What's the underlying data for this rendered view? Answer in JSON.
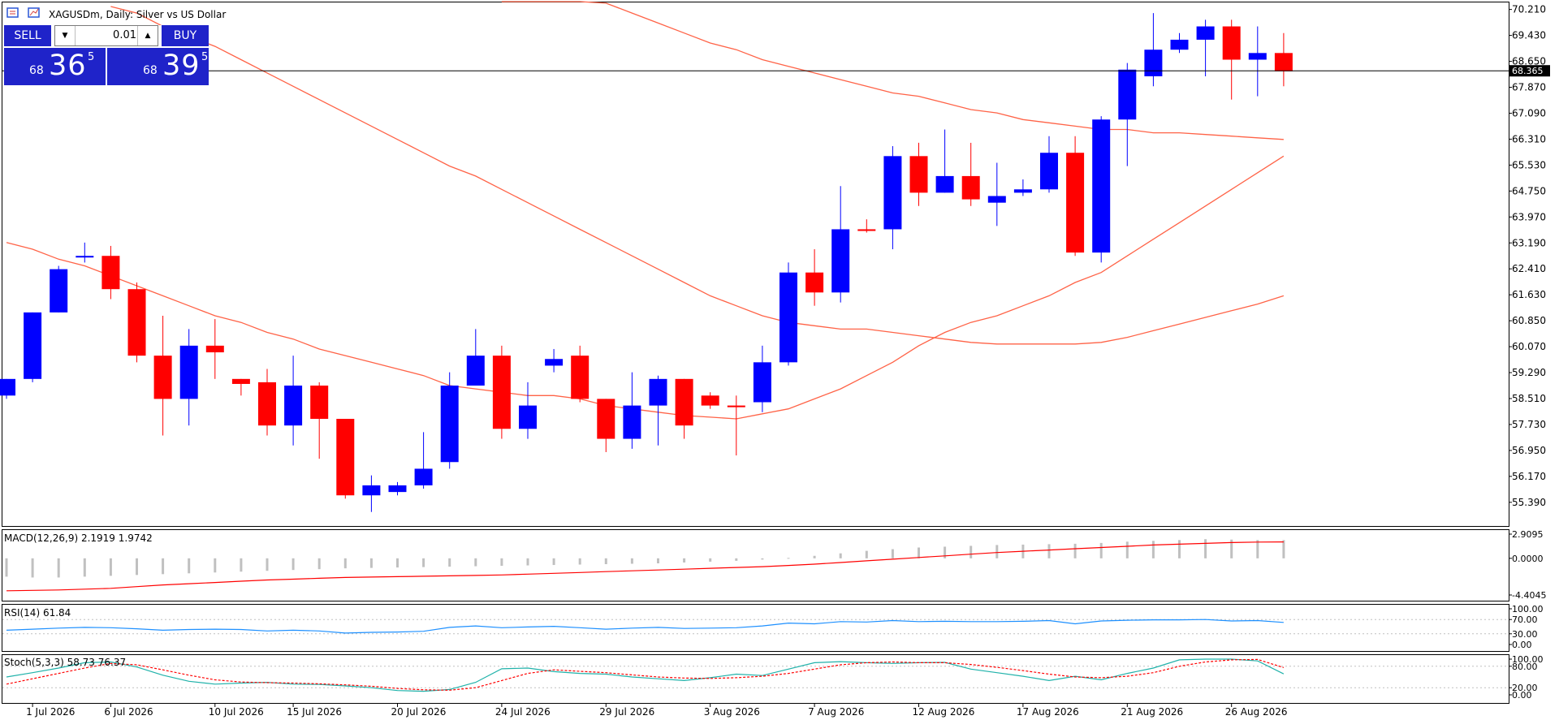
{
  "header": {
    "symbol_title": "XAGUSDm, Daily:  Silver vs US Dollar"
  },
  "trade_panel": {
    "sell_label": "SELL",
    "buy_label": "BUY",
    "lot_value": "0.01",
    "sell_price_prefix": "68",
    "sell_price_big": "36",
    "sell_price_sup": "5",
    "buy_price_prefix": "68",
    "buy_price_big": "39",
    "buy_price_sup": "5"
  },
  "chart_data": {
    "type": "candlestick",
    "symbol": "XAGUSDm",
    "timeframe": "Daily",
    "description": "Silver vs US Dollar",
    "colors": {
      "bull": "#0000ff",
      "bear": "#ff0000",
      "ma": "#ff6347",
      "rsi": "#1e90ff",
      "stoch_main": "#20b2aa",
      "stoch_signal": "#ff0000",
      "macd_hist": "#c0c0c0"
    },
    "price_axis": {
      "ticks": [
        "70.210",
        "69.430",
        "68.650",
        "67.870",
        "67.090",
        "66.310",
        "65.530",
        "64.750",
        "63.970",
        "63.190",
        "62.410",
        "61.630",
        "60.850",
        "60.070",
        "59.290",
        "58.510",
        "57.730",
        "56.950",
        "56.170",
        "55.390"
      ],
      "range": [
        54.8,
        70.25
      ]
    },
    "current_price": "68.365",
    "date_labels": [
      "1 Jul 2026",
      "6 Jul 2026",
      "10 Jul 2026",
      "15 Jul 2026",
      "20 Jul 2026",
      "24 Jul 2026",
      "29 Jul 2026",
      "3 Aug 2026",
      "7 Aug 2026",
      "12 Aug 2026",
      "17 Aug 2026",
      "21 Aug 2026",
      "26 Aug 2026"
    ],
    "candles": [
      {
        "date": "30 Jun",
        "o": 58.6,
        "h": 59.1,
        "l": 58.5,
        "c": 59.1
      },
      {
        "date": "1 Jul",
        "o": 59.1,
        "h": 61.1,
        "l": 59.0,
        "c": 61.1
      },
      {
        "date": "2 Jul",
        "o": 61.1,
        "h": 62.5,
        "l": 61.1,
        "c": 62.4
      },
      {
        "date": "3 Jul",
        "o": 62.8,
        "h": 63.2,
        "l": 62.6,
        "c": 62.8
      },
      {
        "date": "6 Jul",
        "o": 62.8,
        "h": 63.1,
        "l": 61.5,
        "c": 61.8
      },
      {
        "date": "7 Jul",
        "o": 61.8,
        "h": 62.0,
        "l": 59.6,
        "c": 59.8
      },
      {
        "date": "8 Jul",
        "o": 59.8,
        "h": 61.0,
        "l": 57.4,
        "c": 58.5
      },
      {
        "date": "9 Jul",
        "o": 58.5,
        "h": 60.6,
        "l": 57.7,
        "c": 60.1
      },
      {
        "date": "10 Jul",
        "o": 60.1,
        "h": 60.9,
        "l": 59.1,
        "c": 59.9
      },
      {
        "date": "13 Jul",
        "o": 59.1,
        "h": 59.1,
        "l": 58.6,
        "c": 58.95
      },
      {
        "date": "14 Jul",
        "o": 59.0,
        "h": 59.4,
        "l": 57.4,
        "c": 57.7
      },
      {
        "date": "15 Jul",
        "o": 57.7,
        "h": 59.8,
        "l": 57.1,
        "c": 58.9
      },
      {
        "date": "16 Jul",
        "o": 58.9,
        "h": 59.0,
        "l": 56.7,
        "c": 57.9
      },
      {
        "date": "17 Jul",
        "o": 57.9,
        "h": 57.9,
        "l": 55.5,
        "c": 55.6
      },
      {
        "date": "20 Jul",
        "o": 55.6,
        "h": 56.2,
        "l": 55.1,
        "c": 55.9
      },
      {
        "date": "21 Jul",
        "o": 55.7,
        "h": 56.0,
        "l": 55.6,
        "c": 55.9
      },
      {
        "date": "22 Jul",
        "o": 55.9,
        "h": 57.5,
        "l": 55.8,
        "c": 56.4
      },
      {
        "date": "23 Jul",
        "o": 56.6,
        "h": 59.3,
        "l": 56.4,
        "c": 58.9
      },
      {
        "date": "24 Jul",
        "o": 58.9,
        "h": 60.6,
        "l": 58.9,
        "c": 59.8
      },
      {
        "date": "27 Jul",
        "o": 59.8,
        "h": 60.1,
        "l": 57.3,
        "c": 57.6
      },
      {
        "date": "28 Jul",
        "o": 57.6,
        "h": 59.0,
        "l": 57.3,
        "c": 58.3
      },
      {
        "date": "29 Jul",
        "o": 59.5,
        "h": 60.0,
        "l": 59.3,
        "c": 59.7
      },
      {
        "date": "30 Jul",
        "o": 59.8,
        "h": 60.1,
        "l": 58.4,
        "c": 58.5
      },
      {
        "date": "31 Jul",
        "o": 58.5,
        "h": 58.5,
        "l": 56.9,
        "c": 57.3
      },
      {
        "date": "3 Aug",
        "o": 57.3,
        "h": 59.3,
        "l": 57.0,
        "c": 58.3
      },
      {
        "date": "4 Aug",
        "o": 58.3,
        "h": 59.2,
        "l": 57.1,
        "c": 59.1
      },
      {
        "date": "5 Aug",
        "o": 59.1,
        "h": 59.1,
        "l": 57.3,
        "c": 57.7
      },
      {
        "date": "6 Aug",
        "o": 58.6,
        "h": 58.7,
        "l": 58.2,
        "c": 58.3
      },
      {
        "date": "7 Aug",
        "o": 58.3,
        "h": 58.6,
        "l": 56.8,
        "c": 58.25
      },
      {
        "date": "10 Aug",
        "o": 58.4,
        "h": 60.1,
        "l": 58.1,
        "c": 59.6
      },
      {
        "date": "11 Aug",
        "o": 59.6,
        "h": 62.6,
        "l": 59.5,
        "c": 62.3
      },
      {
        "date": "12 Aug",
        "o": 62.3,
        "h": 63.0,
        "l": 61.3,
        "c": 61.7
      },
      {
        "date": "13 Aug",
        "o": 61.7,
        "h": 64.9,
        "l": 61.4,
        "c": 63.6
      },
      {
        "date": "14 Aug",
        "o": 63.6,
        "h": 63.9,
        "l": 63.5,
        "c": 63.55
      },
      {
        "date": "17 Aug",
        "o": 63.6,
        "h": 66.1,
        "l": 63.0,
        "c": 65.8
      },
      {
        "date": "18 Aug",
        "o": 65.8,
        "h": 66.2,
        "l": 64.3,
        "c": 64.7
      },
      {
        "date": "19 Aug",
        "o": 64.7,
        "h": 66.6,
        "l": 64.7,
        "c": 65.2
      },
      {
        "date": "20 Aug",
        "o": 65.2,
        "h": 66.2,
        "l": 64.3,
        "c": 64.5
      },
      {
        "date": "21 Aug",
        "o": 64.4,
        "h": 65.6,
        "l": 63.7,
        "c": 64.6
      },
      {
        "date": "24 Aug",
        "o": 64.7,
        "h": 65.1,
        "l": 64.6,
        "c": 64.8
      },
      {
        "date": "25 Aug",
        "o": 64.8,
        "h": 66.4,
        "l": 64.7,
        "c": 65.9
      },
      {
        "date": "26 Aug",
        "o": 65.9,
        "h": 66.4,
        "l": 62.8,
        "c": 62.9
      },
      {
        "date": "27 Aug",
        "o": 62.9,
        "h": 67.0,
        "l": 62.6,
        "c": 66.9
      },
      {
        "date": "28 Aug",
        "o": 66.9,
        "h": 68.6,
        "l": 65.5,
        "c": 68.4
      },
      {
        "date": "31 Aug",
        "o": 68.2,
        "h": 70.1,
        "l": 67.9,
        "c": 69.0
      },
      {
        "date": "1 Sep",
        "o": 69.0,
        "h": 69.5,
        "l": 68.9,
        "c": 69.3
      },
      {
        "date": "2 Sep",
        "o": 69.3,
        "h": 69.9,
        "l": 68.2,
        "c": 69.7
      },
      {
        "date": "3 Sep",
        "o": 69.7,
        "h": 69.9,
        "l": 67.5,
        "c": 68.7
      },
      {
        "date": "4 Sep",
        "o": 68.7,
        "h": 69.7,
        "l": 67.6,
        "c": 68.9
      },
      {
        "date": "7 Sep",
        "o": 68.9,
        "h": 69.5,
        "l": 67.9,
        "c": 68.35
      }
    ],
    "moving_averages": [
      {
        "name": "MA fast",
        "values": [
          63.2,
          63.0,
          62.7,
          62.5,
          62.2,
          61.9,
          61.6,
          61.3,
          61.0,
          60.8,
          60.5,
          60.3,
          60.0,
          59.8,
          59.6,
          59.4,
          59.2,
          58.9,
          58.8,
          58.7,
          58.6,
          58.6,
          58.5,
          58.3,
          58.2,
          58.1,
          58.0,
          57.95,
          57.9,
          58.05,
          58.2,
          58.5,
          58.8,
          59.2,
          59.6,
          60.1,
          60.5,
          60.8,
          61.0,
          61.3,
          61.6,
          62.0,
          62.3,
          62.8,
          63.3,
          63.8,
          64.3,
          64.8,
          65.3,
          65.8
        ]
      },
      {
        "name": "MA slow",
        "values": [
          null,
          null,
          null,
          null,
          70.3,
          70.1,
          69.7,
          69.4,
          69.1,
          68.7,
          68.3,
          67.9,
          67.5,
          67.1,
          66.7,
          66.3,
          65.9,
          65.5,
          65.2,
          64.8,
          64.4,
          64.0,
          63.6,
          63.2,
          62.8,
          62.4,
          62.0,
          61.6,
          61.3,
          61.0,
          60.8,
          60.7,
          60.6,
          60.6,
          60.5,
          60.4,
          60.3,
          60.2,
          60.15,
          60.15,
          60.15,
          60.15,
          60.2,
          60.35,
          60.55,
          60.75,
          60.95,
          61.15,
          61.35,
          61.6
        ]
      },
      {
        "name": "MA long",
        "values": [
          null,
          null,
          null,
          null,
          null,
          null,
          null,
          null,
          null,
          null,
          null,
          null,
          null,
          null,
          null,
          null,
          null,
          null,
          null,
          72.0,
          71.5,
          71.1,
          70.8,
          70.4,
          70.1,
          69.8,
          69.5,
          69.2,
          69.0,
          68.7,
          68.5,
          68.3,
          68.1,
          67.9,
          67.7,
          67.6,
          67.4,
          67.2,
          67.1,
          66.9,
          66.8,
          66.7,
          66.6,
          66.6,
          66.5,
          66.5,
          66.45,
          66.4,
          66.35,
          66.3
        ]
      }
    ],
    "indicators": {
      "macd": {
        "label": "MACD(12,26,9) 2.1919 1.9742",
        "axis_ticks": [
          "2.9095",
          "0.0000",
          "-4.4045"
        ],
        "range": [
          -4.4045,
          2.9095
        ],
        "hist": [
          -2.2,
          -2.3,
          -2.3,
          -2.2,
          -2.1,
          -2.0,
          -1.9,
          -1.8,
          -1.7,
          -1.6,
          -1.5,
          -1.4,
          -1.3,
          -1.2,
          -1.15,
          -1.1,
          -1.05,
          -1.0,
          -0.95,
          -0.9,
          -0.85,
          -0.8,
          -0.75,
          -0.7,
          -0.65,
          -0.6,
          -0.5,
          -0.4,
          -0.3,
          -0.15,
          0.05,
          0.3,
          0.6,
          0.9,
          1.1,
          1.3,
          1.4,
          1.5,
          1.6,
          1.65,
          1.7,
          1.75,
          1.85,
          2.0,
          2.1,
          2.2,
          2.3,
          2.25,
          2.2,
          2.19
        ],
        "signal": [
          -3.9,
          -3.85,
          -3.8,
          -3.7,
          -3.6,
          -3.4,
          -3.2,
          -3.05,
          -2.9,
          -2.75,
          -2.6,
          -2.5,
          -2.4,
          -2.3,
          -2.25,
          -2.2,
          -2.15,
          -2.1,
          -2.05,
          -2.0,
          -1.9,
          -1.8,
          -1.7,
          -1.6,
          -1.5,
          -1.4,
          -1.3,
          -1.2,
          -1.1,
          -1.0,
          -0.85,
          -0.7,
          -0.5,
          -0.3,
          -0.1,
          0.1,
          0.3,
          0.5,
          0.7,
          0.85,
          1.0,
          1.15,
          1.3,
          1.45,
          1.6,
          1.7,
          1.8,
          1.9,
          1.95,
          1.97
        ]
      },
      "rsi": {
        "label": "RSI(14) 61.84",
        "axis_ticks": [
          "100.00",
          "70.00",
          "30.00",
          "0.00"
        ],
        "range": [
          0,
          100
        ],
        "values": [
          40,
          43,
          46,
          48,
          47,
          44,
          40,
          42,
          43,
          42,
          38,
          40,
          38,
          32,
          34,
          35,
          37,
          48,
          52,
          47,
          49,
          51,
          47,
          43,
          46,
          48,
          45,
          46,
          47,
          52,
          60,
          58,
          64,
          63,
          67,
          64,
          65,
          64,
          64,
          65,
          67,
          58,
          66,
          68,
          69,
          69,
          70,
          66,
          67,
          61.84
        ]
      },
      "stoch": {
        "label": "Stoch(5,3,3) 58.73 76.37",
        "axis_ticks": [
          "100.00",
          "80.00",
          "20.00",
          "0.00"
        ],
        "range": [
          0,
          100
        ],
        "main": [
          50,
          62,
          75,
          90,
          92,
          78,
          55,
          38,
          30,
          33,
          35,
          30,
          29,
          25,
          20,
          12,
          10,
          15,
          35,
          73,
          75,
          65,
          60,
          58,
          50,
          45,
          40,
          48,
          58,
          54,
          72,
          90,
          93,
          90,
          88,
          90,
          91,
          72,
          62,
          52,
          40,
          52,
          42,
          60,
          75,
          98,
          100,
          100,
          95,
          58.73
        ],
        "signal": [
          30,
          45,
          60,
          75,
          88,
          84,
          70,
          55,
          42,
          36,
          34,
          33,
          31,
          28,
          24,
          18,
          14,
          13,
          20,
          40,
          60,
          70,
          66,
          62,
          56,
          50,
          47,
          46,
          48,
          52,
          60,
          72,
          84,
          90,
          92,
          90,
          90,
          85,
          77,
          68,
          58,
          50,
          48,
          52,
          62,
          80,
          92,
          98,
          99,
          76.37
        ]
      }
    }
  }
}
